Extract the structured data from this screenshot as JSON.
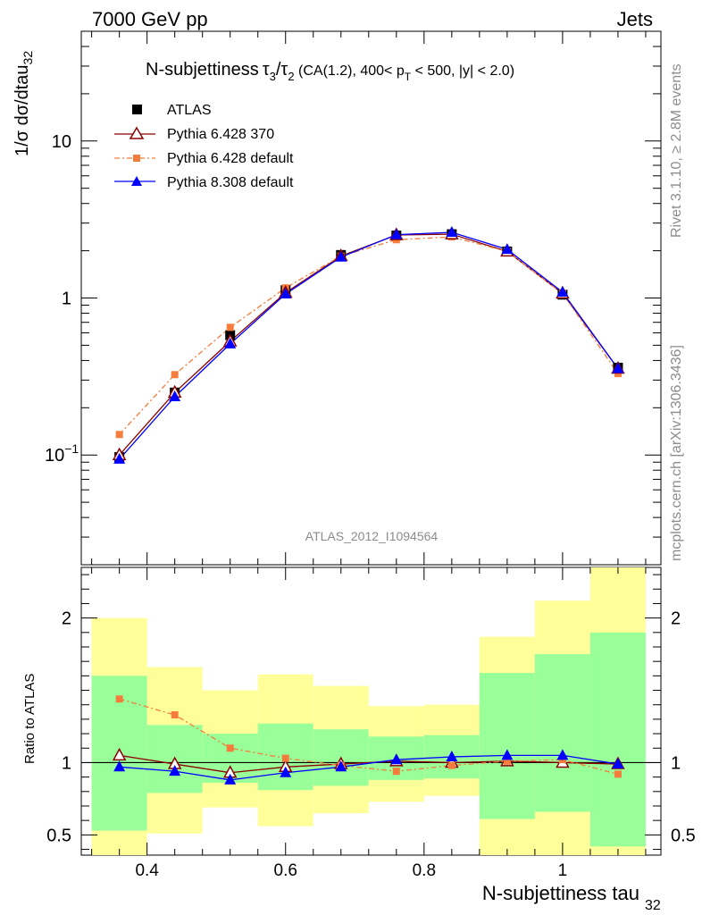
{
  "header": {
    "left": "7000 GeV pp",
    "right": "Jets"
  },
  "side": {
    "rivet": "Rivet 3.1.10, ≥ 2.8M events",
    "mcplots": "mcplots.cern.ch [arXiv:1306.3436]"
  },
  "watermark": "ATLAS_2012_I1094564",
  "title": {
    "main": "N-subjettiness",
    "tau3": "τ",
    "sub3": "3",
    "slash": "/",
    "tau2": "τ",
    "sub2": "2",
    "cut1": " (CA(1.2), 400< p",
    "cutsub": "T",
    "cut2": " < 500, |y| < 2.0)"
  },
  "ylabel": {
    "text": "1/σ dσ/dtau",
    "sub": "32"
  },
  "ratio_ylabel": "Ratio to ATLAS",
  "xlabel": {
    "text": "N-subjettiness tau",
    "sub": "32"
  },
  "legend": [
    "ATLAS",
    "Pythia 6.428 370",
    "Pythia 6.428 default",
    "Pythia 8.308 default"
  ],
  "colors": {
    "data": "#000000",
    "p370": "#8b0000",
    "pdef": "#f47c3c",
    "p8": "#0000ff",
    "band_inner": "#99ff99",
    "band_outer": "#ffff99"
  },
  "chart_data": {
    "type": "line",
    "main": {
      "yscale": "log",
      "ylim": [
        0.02,
        50
      ],
      "yticks": [
        {
          "v": 10,
          "label": "10"
        },
        {
          "v": 1,
          "label": "1"
        },
        {
          "v": 0.1,
          "label": "10",
          "sup": "−1"
        }
      ],
      "x": [
        0.36,
        0.44,
        0.52,
        0.6,
        0.68,
        0.76,
        0.84,
        0.92,
        1.0,
        1.08
      ],
      "series": [
        {
          "name": "ATLAS",
          "key": "data",
          "marker": "square",
          "values": [
            0.097,
            0.25,
            0.58,
            1.12,
            1.88,
            2.5,
            2.55,
            1.98,
            1.05,
            0.36
          ]
        },
        {
          "name": "Pythia 6.428 370",
          "key": "p370",
          "marker": "triangle-open",
          "values": [
            0.1,
            0.25,
            0.53,
            1.08,
            1.85,
            2.52,
            2.55,
            1.98,
            1.07,
            0.355
          ]
        },
        {
          "name": "Pythia 6.428 default",
          "key": "pdef",
          "marker": "small-square",
          "values": [
            0.135,
            0.325,
            0.65,
            1.16,
            1.85,
            2.35,
            2.45,
            1.98,
            1.07,
            0.33
          ]
        },
        {
          "name": "Pythia 8.308 default",
          "key": "p8",
          "marker": "triangle",
          "values": [
            0.094,
            0.235,
            0.51,
            1.06,
            1.82,
            2.53,
            2.62,
            2.04,
            1.09,
            0.355
          ]
        }
      ]
    },
    "ratio": {
      "ylim": [
        0.36,
        2.35
      ],
      "yticks": [
        {
          "v": 2,
          "label": "2"
        },
        {
          "v": 1,
          "label": "1"
        },
        {
          "v": 0.5,
          "label": "0.5"
        }
      ],
      "bins": [
        [
          0.32,
          0.4
        ],
        [
          0.4,
          0.48
        ],
        [
          0.48,
          0.56
        ],
        [
          0.56,
          0.64
        ],
        [
          0.64,
          0.72
        ],
        [
          0.72,
          0.8
        ],
        [
          0.8,
          0.88
        ],
        [
          0.88,
          0.96
        ],
        [
          0.96,
          1.04
        ],
        [
          1.04,
          1.12
        ]
      ],
      "band_inner": [
        [
          0.53,
          1.6
        ],
        [
          0.79,
          1.26
        ],
        [
          0.86,
          1.2
        ],
        [
          0.81,
          1.27
        ],
        [
          0.84,
          1.23
        ],
        [
          0.88,
          1.18
        ],
        [
          0.89,
          1.19
        ],
        [
          0.61,
          1.62
        ],
        [
          0.66,
          1.75
        ],
        [
          0.42,
          1.9
        ]
      ],
      "band_outer": [
        [
          0.36,
          2.0
        ],
        [
          0.51,
          1.66
        ],
        [
          0.69,
          1.5
        ],
        [
          0.56,
          1.61
        ],
        [
          0.65,
          1.53
        ],
        [
          0.73,
          1.39
        ],
        [
          0.77,
          1.4
        ],
        [
          0.36,
          1.87
        ],
        [
          0.36,
          2.12
        ],
        [
          0.36,
          2.35
        ]
      ],
      "series": [
        {
          "name": "Pythia 6.428 370",
          "key": "p370",
          "values": [
            1.05,
            0.99,
            0.93,
            0.97,
            0.99,
            1.01,
            1.0,
            1.01,
            1.0,
            0.99
          ]
        },
        {
          "name": "Pythia 6.428 default",
          "key": "pdef",
          "values": [
            1.44,
            1.33,
            1.1,
            1.03,
            0.98,
            0.94,
            0.98,
            1.01,
            1.02,
            0.92
          ]
        },
        {
          "name": "Pythia 8.308 default",
          "key": "p8",
          "values": [
            0.97,
            0.94,
            0.88,
            0.93,
            0.97,
            1.02,
            1.04,
            1.05,
            1.05,
            0.99
          ]
        }
      ]
    },
    "xlim": [
      0.305,
      1.142
    ],
    "xticks": [
      {
        "v": 0.4,
        "label": "0.4"
      },
      {
        "v": 0.6,
        "label": "0.6"
      },
      {
        "v": 0.8,
        "label": "0.8"
      },
      {
        "v": 1.0,
        "label": "1"
      }
    ]
  }
}
